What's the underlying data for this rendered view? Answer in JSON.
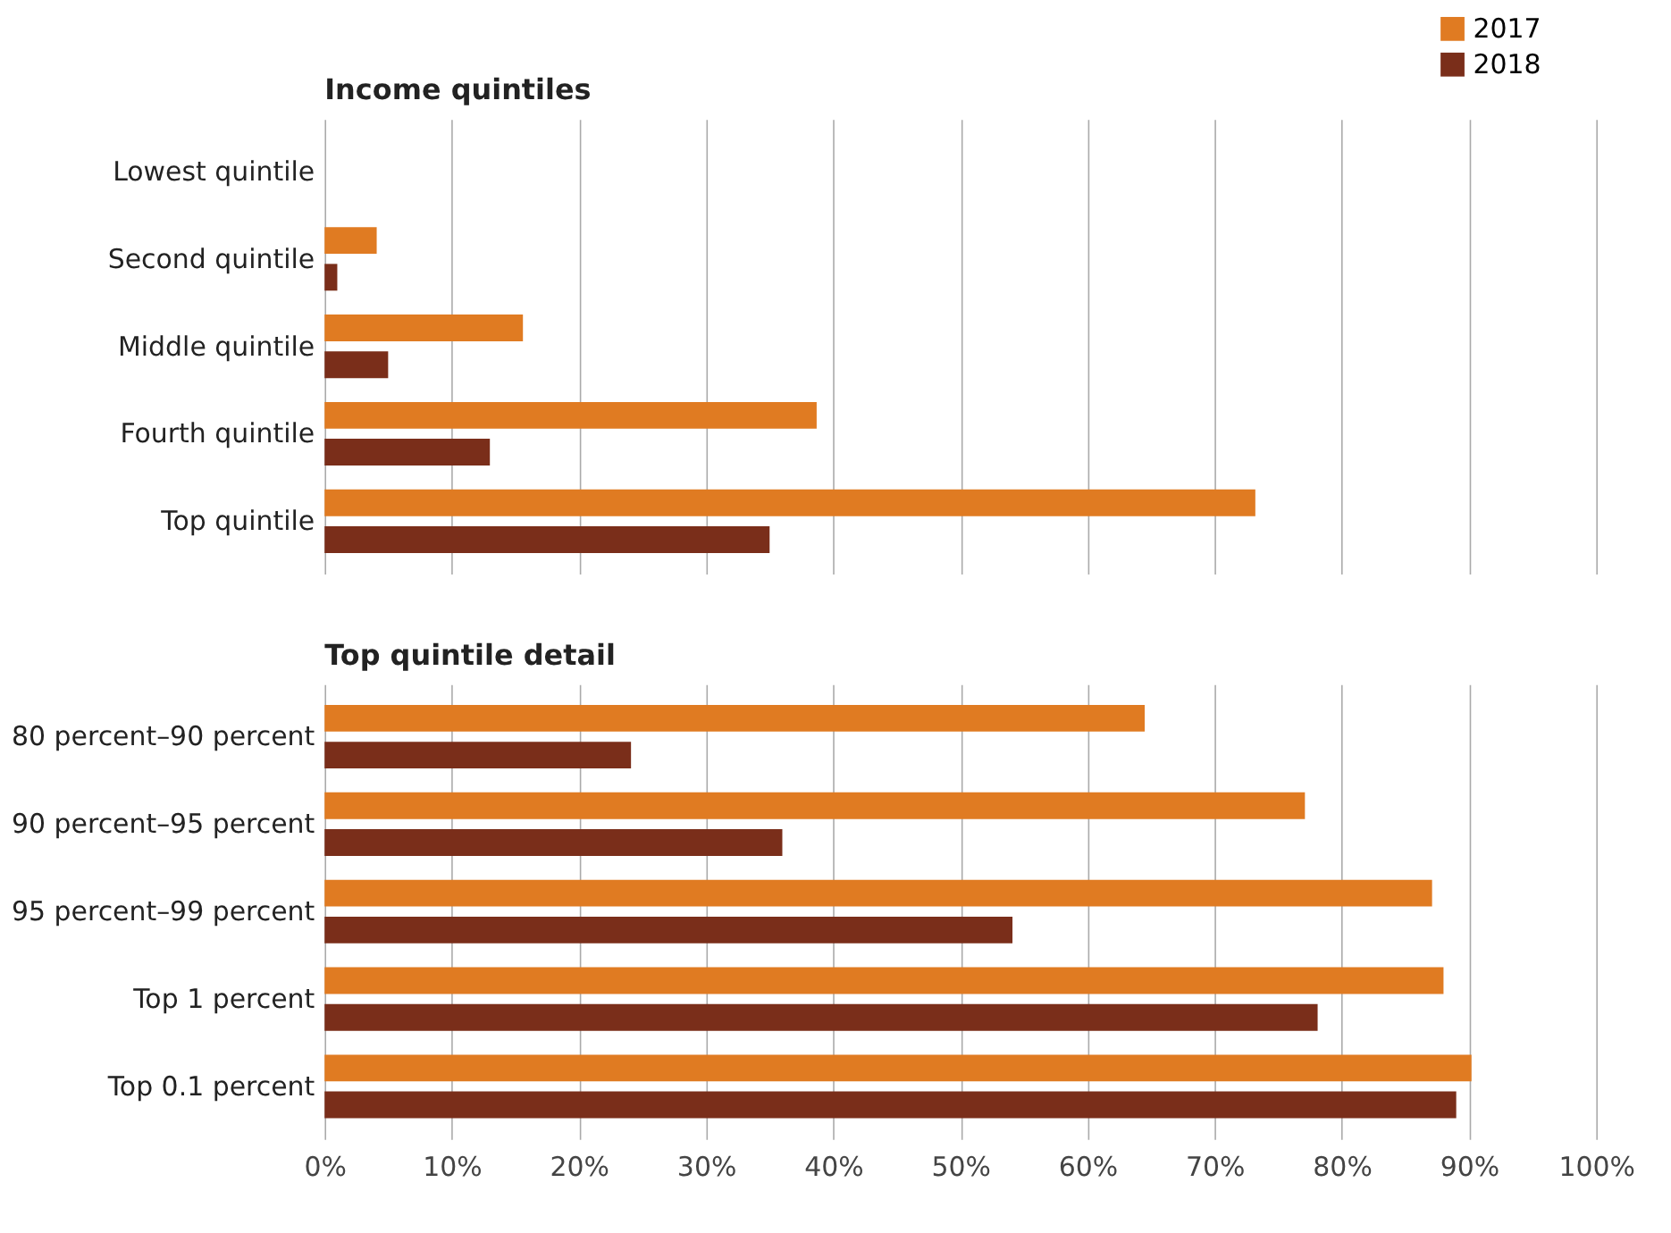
{
  "chart_data": [
    {
      "type": "bar",
      "orientation": "horizontal",
      "title": "Income quintiles",
      "categories": [
        "Lowest quintile",
        "Second quintile",
        "Middle quintile",
        "Fourth quintile",
        "Top quintile"
      ],
      "series": [
        {
          "name": "2017",
          "color": "#e07b22",
          "values": [
            0,
            4.1,
            15.6,
            38.7,
            73.2
          ]
        },
        {
          "name": "2018",
          "color": "#7a2e1a",
          "values": [
            0,
            1,
            5,
            13,
            35
          ]
        }
      ],
      "xlim": [
        0,
        100
      ],
      "xticks": [
        0,
        10,
        20,
        30,
        40,
        50,
        60,
        70,
        80,
        90,
        100
      ],
      "grid": "x",
      "legend": "top right",
      "tick_labels": "y"
    },
    {
      "type": "bar",
      "orientation": "horizontal",
      "title": "Top quintile detail",
      "categories": [
        "80 percent–90 percent",
        "90 percent–95 percent",
        "95 percent–99 percent",
        "Top 1 percent",
        "Top 0.1 percent"
      ],
      "series": [
        {
          "name": "2017",
          "color": "#e07b22",
          "values": [
            64.5,
            77.1,
            87.1,
            88,
            90.2
          ]
        },
        {
          "name": "2018",
          "color": "#7a2e1a",
          "values": [
            24.1,
            36,
            54.1,
            78.1,
            89
          ]
        }
      ],
      "xlim": [
        0,
        100
      ],
      "xticks": [
        {
          "value": 0,
          "label": "0%"
        },
        {
          "value": 10,
          "label": "10%"
        },
        {
          "value": 20,
          "label": "20%"
        },
        {
          "value": 30,
          "label": "30%"
        },
        {
          "value": 40,
          "label": "40%"
        },
        {
          "value": 50,
          "label": "50%"
        },
        {
          "value": 60,
          "label": "60%"
        },
        {
          "value": 70,
          "label": "70%"
        },
        {
          "value": 80,
          "label": "80%"
        },
        {
          "value": 90,
          "label": "90%"
        },
        {
          "value": 100,
          "label": "100%"
        }
      ],
      "grid": "x",
      "legend": false
    }
  ]
}
